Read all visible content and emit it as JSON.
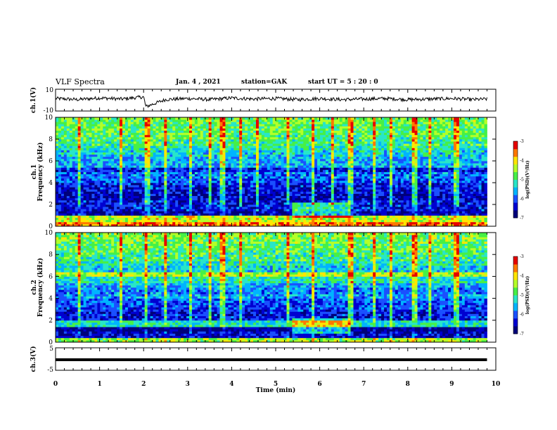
{
  "header": {
    "title": "VLF Spectra",
    "date": "Jan. 4 , 2021",
    "station": "station=GAK",
    "start": "start UT =  5 : 20 : 0"
  },
  "colors": {
    "trace": "#000000",
    "colormap": [
      "#00007a",
      "#0000d0",
      "#1a50ff",
      "#00b4ff",
      "#28e6c8",
      "#46f046",
      "#b4ff28",
      "#ffe600",
      "#ff7800",
      "#e60000"
    ]
  },
  "chart_data": [
    {
      "type": "line",
      "ylabel": "ch.1(V)",
      "yticks": [
        "10",
        "-10"
      ],
      "ylim": [
        -10,
        10
      ],
      "xlim": [
        0,
        10
      ],
      "note": "ch.1 waveform: noisy signal centred near +1 V with a single negative spike near 2 min",
      "x": [
        0,
        0.5,
        1,
        1.5,
        2,
        2.05,
        2.5,
        3,
        3.5,
        4,
        4.5,
        5,
        5.5,
        6,
        6.5,
        7,
        7.5,
        8,
        8.5,
        9,
        9.5,
        9.8
      ],
      "values": [
        1.5,
        0.5,
        2,
        1,
        3,
        -6,
        0.5,
        1.5,
        0.5,
        2,
        1,
        1.5,
        0.5,
        1.5,
        0.5,
        1,
        1.5,
        0.5,
        1,
        1.5,
        0.5,
        1
      ]
    },
    {
      "type": "heatmap",
      "ylabel": "ch.1 Frequency (kHz)",
      "yticks": [
        "0",
        "2",
        "4",
        "6",
        "8",
        "10"
      ],
      "ylim": [
        0,
        10
      ],
      "xlim": [
        0,
        9.8
      ],
      "colorbar": {
        "label": "log(PSD)(V²/Hz)",
        "ticks": [
          "-3",
          "-4",
          "-5",
          "-6",
          "-7"
        ],
        "range": [
          -7,
          -3
        ]
      },
      "frequency_bins_khz": [
        0.25,
        0.75,
        1.25,
        1.75,
        2.25,
        2.75,
        3.25,
        3.75,
        4.25,
        4.75,
        5.25,
        5.75,
        6.25,
        6.75,
        7.25,
        7.75,
        8.25,
        8.75,
        9.25,
        9.75
      ],
      "mean_log_psd": [
        -3.6,
        -4.3,
        -6.6,
        -6.3,
        -6.3,
        -6.5,
        -6.4,
        -6.3,
        -6.0,
        -5.9,
        -6.3,
        -5.6,
        -5.6,
        -5.4,
        -5.2,
        -5.0,
        -4.9,
        -4.8,
        -4.8,
        -4.7
      ],
      "broadband_bursts_min": [
        0.55,
        1.5,
        2.05,
        2.1,
        2.5,
        3.05,
        3.5,
        3.8,
        4.2,
        4.6,
        5.3,
        5.85,
        6.3,
        6.7,
        7.25,
        7.6,
        8.15,
        8.5,
        9.1
      ]
    },
    {
      "type": "heatmap",
      "ylabel": "ch.2 Frequency (kHz)",
      "yticks": [
        "0",
        "2",
        "4",
        "6",
        "8",
        "10"
      ],
      "ylim": [
        0,
        10
      ],
      "xlim": [
        0,
        9.8
      ],
      "colorbar": {
        "label": "log(PSD)(V²/Hz)",
        "ticks": [
          "-3",
          "-4",
          "-5",
          "-6",
          "-7"
        ],
        "range": [
          -7,
          -3
        ]
      },
      "frequency_bins_khz": [
        0.25,
        0.75,
        1.25,
        1.75,
        2.25,
        2.75,
        3.25,
        3.75,
        4.25,
        4.75,
        5.25,
        5.75,
        6.25,
        6.75,
        7.25,
        7.75,
        8.25,
        8.75,
        9.25,
        9.75
      ],
      "mean_log_psd": [
        -4.5,
        -6.5,
        -6.8,
        -5.2,
        -6.3,
        -6.3,
        -6.1,
        -6.0,
        -5.7,
        -5.8,
        -5.6,
        -5.2,
        -4.4,
        -5.4,
        -5.2,
        -5.0,
        -4.9,
        -4.8,
        -4.7,
        -4.6
      ],
      "broadband_bursts_min": [
        0.55,
        1.5,
        2.05,
        2.5,
        3.05,
        3.5,
        3.8,
        4.2,
        5.3,
        5.85,
        6.7,
        7.25,
        7.6,
        8.15,
        8.5,
        9.1
      ]
    },
    {
      "type": "line",
      "ylabel": "ch.3(V)",
      "yticks": [
        "5",
        "-5"
      ],
      "ylim": [
        -5,
        5
      ],
      "xlim": [
        0,
        10
      ],
      "x": [
        0,
        9.8
      ],
      "values": [
        -0.3,
        -0.3
      ]
    }
  ],
  "xaxis": {
    "label": "Time (min)",
    "ticks": [
      "0",
      "1",
      "2",
      "3",
      "4",
      "5",
      "6",
      "7",
      "8",
      "9",
      "10"
    ]
  }
}
